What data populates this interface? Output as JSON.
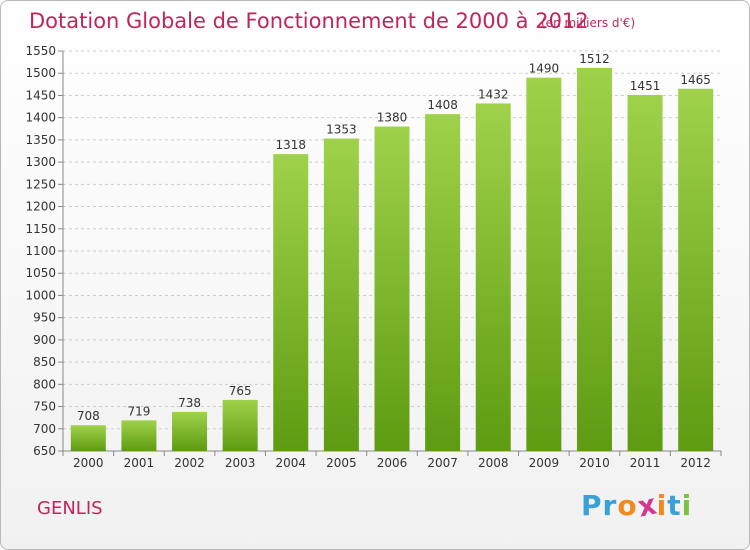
{
  "header": {
    "title": "Dotation Globale de Fonctionnement de 2000 à 2012",
    "subtitle": "(en milliers d'€)"
  },
  "footer": {
    "commune": "GENLIS",
    "logo_letters": [
      "P",
      "r",
      "o",
      "x",
      "i",
      "t",
      "i"
    ]
  },
  "colors": {
    "title": "#c0245e",
    "bar_top": "#9fd24a",
    "bar_bottom": "#5e9b12",
    "logo": [
      "#3aa0d8",
      "#3aa0d8",
      "#f08a1c",
      "#d33a8f",
      "#f08a1c",
      "#3aa0d8",
      "#7cc242"
    ]
  },
  "chart_data": {
    "type": "bar",
    "title": "Dotation Globale de Fonctionnement de 2000 à 2012",
    "subtitle": "(en milliers d'€)",
    "categories": [
      "2000",
      "2001",
      "2002",
      "2003",
      "2004",
      "2005",
      "2006",
      "2007",
      "2008",
      "2009",
      "2010",
      "2011",
      "2012"
    ],
    "values": [
      708,
      719,
      738,
      765,
      1318,
      1353,
      1380,
      1408,
      1432,
      1490,
      1512,
      1451,
      1465
    ],
    "ylim": [
      650,
      1550
    ],
    "yticks": [
      650,
      700,
      750,
      800,
      850,
      900,
      950,
      1000,
      1050,
      1100,
      1150,
      1200,
      1250,
      1300,
      1350,
      1400,
      1450,
      1500,
      1550
    ],
    "grid": true,
    "data_labels": true
  }
}
